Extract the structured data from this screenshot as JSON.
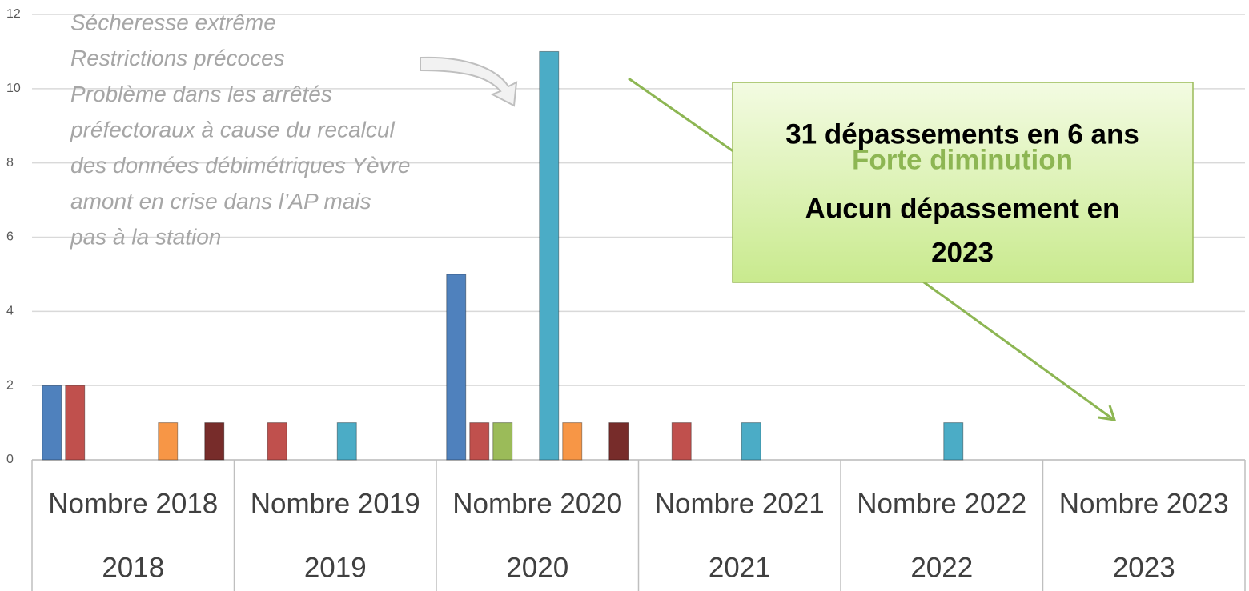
{
  "chart_data": {
    "type": "bar",
    "categories": [
      "Nombre 2018",
      "Nombre 2019",
      "Nombre 2020",
      "Nombre 2021",
      "Nombre 2022",
      "Nombre 2023"
    ],
    "category_groups": [
      "2018",
      "2019",
      "2020",
      "2021",
      "2022",
      "2023"
    ],
    "series": [
      {
        "color": "#4f81bd",
        "values": [
          2,
          0,
          5,
          0,
          0,
          0
        ]
      },
      {
        "color": "#c0504d",
        "values": [
          2,
          1,
          1,
          1,
          0,
          0
        ]
      },
      {
        "color": "#9bbb59",
        "values": [
          0,
          0,
          1,
          0,
          0,
          0
        ]
      },
      {
        "color": "#8064a2",
        "values": [
          0,
          0,
          0,
          0,
          0,
          0
        ]
      },
      {
        "color": "#4bacc6",
        "values": [
          0,
          1,
          11,
          1,
          1,
          0
        ]
      },
      {
        "color": "#f79646",
        "values": [
          1,
          0,
          1,
          0,
          0,
          0
        ]
      },
      {
        "color": "#2c4d75",
        "values": [
          0,
          0,
          0,
          0,
          0,
          0
        ]
      },
      {
        "color": "#772c2a",
        "values": [
          1,
          0,
          1,
          0,
          0,
          0
        ]
      }
    ],
    "ylim": [
      0,
      12
    ],
    "yticks": [
      0,
      2,
      4,
      6,
      8,
      10,
      12
    ],
    "grid": true,
    "annotations": [
      "Sécheresse extrême",
      "Restrictions précoces",
      "Problème dans les arrêtés",
      "préfectoraux à cause du recalcul",
      "des données débimétriques Yèvre",
      "amont en crise dans l’AP mais",
      "pas à la station"
    ],
    "callout": [
      {
        "text": "31 dépassements en 6 ans",
        "color": "#000000"
      },
      {
        "text": "Forte diminution",
        "color": "#8db653"
      },
      {
        "text": "Aucun dépassement en",
        "color": "#000000"
      },
      {
        "text": "2023",
        "color": "#000000"
      }
    ]
  }
}
